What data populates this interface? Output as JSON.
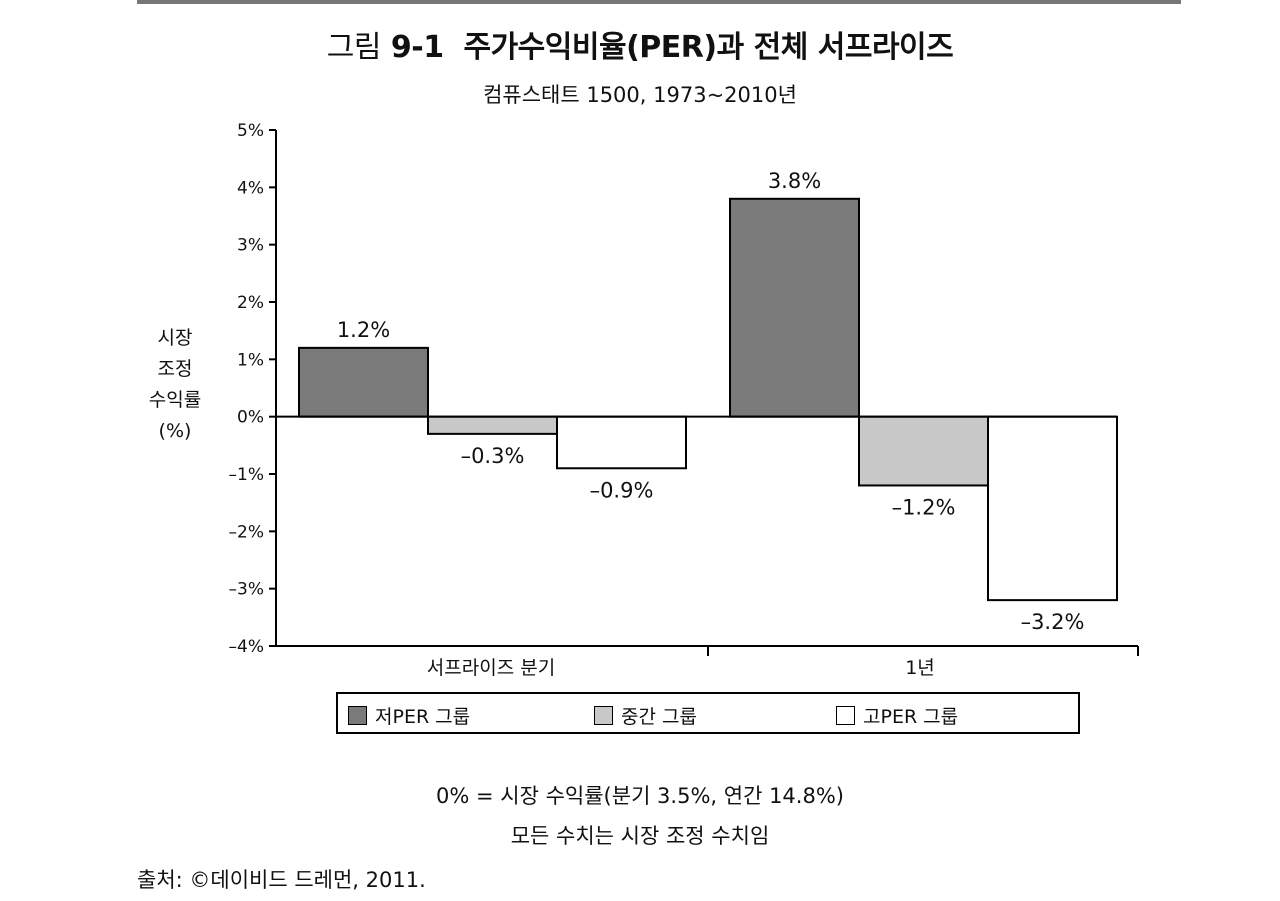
{
  "figure": {
    "title_prefix": "그림",
    "title_number": "9-1",
    "title_text": "주가수익비율(PER)과 전체 서프라이즈",
    "subtitle": "컴퓨스태트 1500, 1973~2010년",
    "note_lines": [
      "0% = 시장 수익률(분기 3.5%, 연간 14.8%)",
      "모든 수치는 시장 조정 수치임"
    ],
    "source": "출처: ©데이비드 드레먼, 2011."
  },
  "chart_data": {
    "type": "bar",
    "title": "그림 9-1 주가수익비율(PER)과 전체 서프라이즈",
    "subtitle": "컴퓨스태트 1500, 1973~2010년",
    "ylabel_lines": [
      "시장",
      "조정",
      "수익률",
      "(%)"
    ],
    "categories": [
      "서프라이즈 분기",
      "1년"
    ],
    "series": [
      {
        "name": "저PER 그룹",
        "values": [
          1.2,
          3.8
        ],
        "labels": [
          "1.2%",
          "3.8%"
        ],
        "color": "#7a7a7a"
      },
      {
        "name": "중간 그룹",
        "values": [
          -0.3,
          -1.2
        ],
        "labels": [
          "–0.3%",
          "–1.2%"
        ],
        "color": "#c8c8c8"
      },
      {
        "name": "고PER 그룹",
        "values": [
          -0.9,
          -3.2
        ],
        "labels": [
          "–0.9%",
          "–3.2%"
        ],
        "color": "#ffffff"
      }
    ],
    "ylim": [
      -4,
      5
    ],
    "yticks": [
      5,
      4,
      3,
      2,
      1,
      0,
      -1,
      -2,
      -3,
      -4
    ],
    "ytick_labels": [
      "5%",
      "4%",
      "3%",
      "2%",
      "1%",
      "0%",
      "–1%",
      "–2%",
      "–3%",
      "–4%"
    ],
    "legend_position": "bottom",
    "grid": false
  }
}
